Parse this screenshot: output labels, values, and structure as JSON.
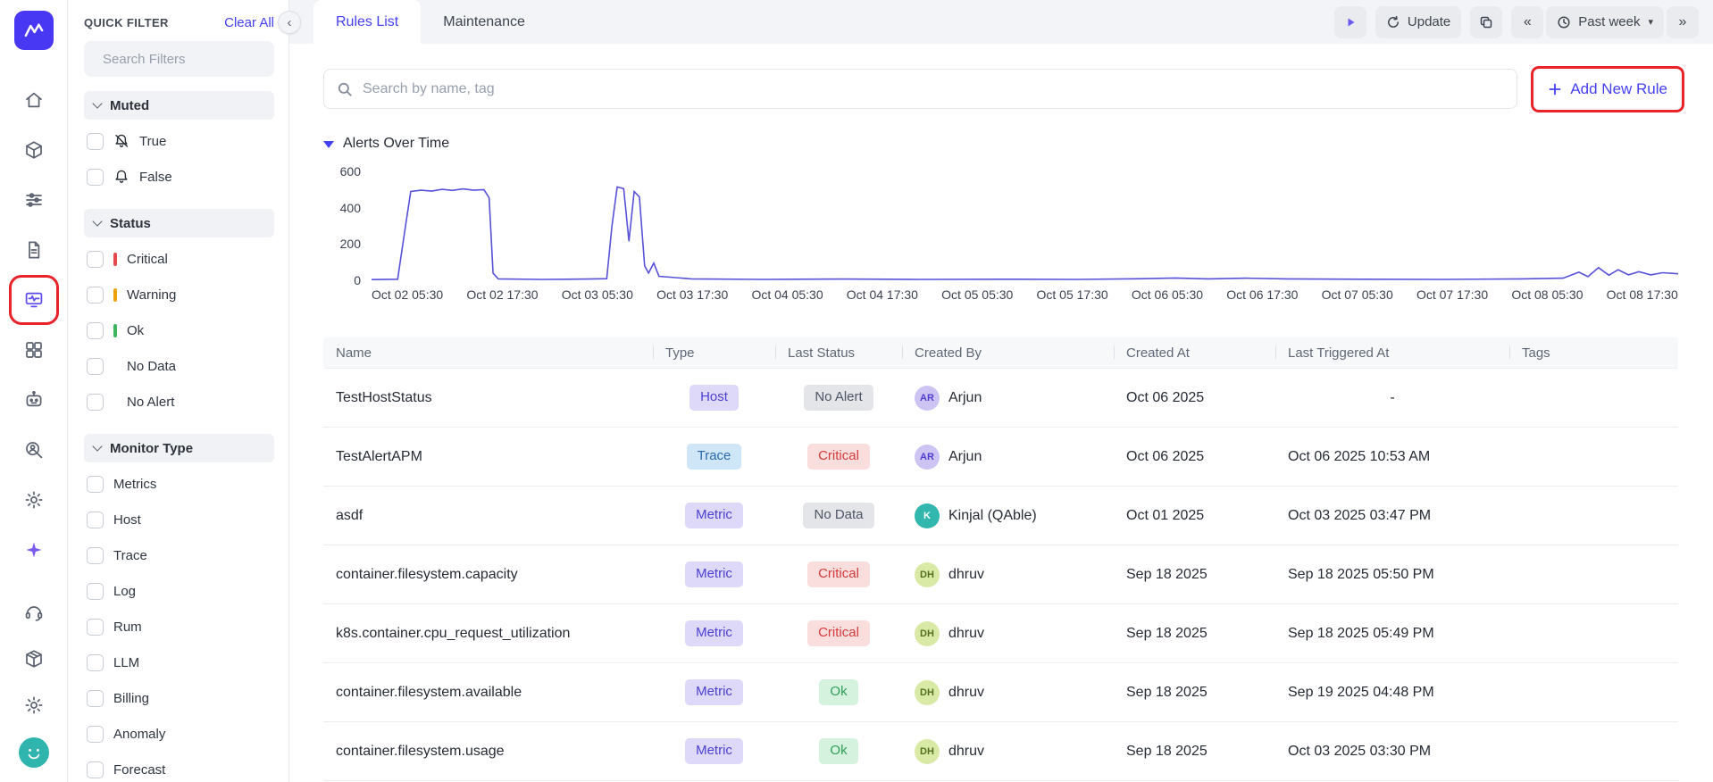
{
  "colors": {
    "accent": "#4540f2",
    "annotation": "#e8232a",
    "chart_line": "#5751d9",
    "critical": "#d53b3b",
    "warning": "#f0a20c",
    "ok": "#2f9e57"
  },
  "icons": {
    "collapse": "‹",
    "chevrons_left": "«",
    "chevrons_right": "»",
    "caret_down": "▾"
  },
  "rail": {
    "top": [
      "home-icon",
      "cube-icon",
      "sliders-icon",
      "document-icon",
      "alerts-icon",
      "grid-icon",
      "bot-icon",
      "user-search-icon",
      "gear-icon",
      "sparkle-icon"
    ],
    "bottom": [
      "headset-icon",
      "package-icon",
      "settings-icon"
    ],
    "active": "alerts-icon",
    "annotated": "alerts-icon"
  },
  "sidebar": {
    "title": "QUICK FILTER",
    "clear_all": "Clear All",
    "search_placeholder": "Search Filters",
    "sections": [
      {
        "label": "Muted",
        "items": [
          {
            "label": "True",
            "icon": "bell-muted-icon"
          },
          {
            "label": "False",
            "icon": "bell-icon"
          }
        ]
      },
      {
        "label": "Status",
        "items": [
          {
            "label": "Critical",
            "color": "#e5484d"
          },
          {
            "label": "Warning",
            "color": "#f0a20c"
          },
          {
            "label": "Ok",
            "color": "#3cb55e"
          },
          {
            "label": "No Data"
          },
          {
            "label": "No Alert"
          }
        ]
      },
      {
        "label": "Monitor Type",
        "items": [
          {
            "label": "Metrics"
          },
          {
            "label": "Host"
          },
          {
            "label": "Trace"
          },
          {
            "label": "Log"
          },
          {
            "label": "Rum"
          },
          {
            "label": "LLM"
          },
          {
            "label": "Billing"
          },
          {
            "label": "Anomaly"
          },
          {
            "label": "Forecast"
          }
        ]
      }
    ]
  },
  "tabs": [
    {
      "label": "Rules List",
      "active": true
    },
    {
      "label": "Maintenance",
      "active": false
    }
  ],
  "toolbar": {
    "update_label": "Update",
    "range_label": "Past week"
  },
  "search": {
    "placeholder": "Search by name, tag"
  },
  "add_rule_label": "Add New Rule",
  "chart_section_label": "Alerts Over Time",
  "chart_data": {
    "type": "line",
    "title": "Alerts Over Time",
    "legend": [],
    "grid": false,
    "ylim": [
      0,
      650
    ],
    "yticks": [
      0,
      200,
      400,
      600
    ],
    "x_labels": [
      "Oct 02 05:30",
      "Oct 02 17:30",
      "Oct 03 05:30",
      "Oct 03 17:30",
      "Oct 04 05:30",
      "Oct 04 17:30",
      "Oct 05 05:30",
      "Oct 05 17:30",
      "Oct 06 05:30",
      "Oct 06 17:30",
      "Oct 07 05:30",
      "Oct 07 17:30",
      "Oct 08 05:30",
      "Oct 08 17:30"
    ],
    "points": [
      [
        0.0,
        4
      ],
      [
        0.02,
        6
      ],
      [
        0.026,
        300
      ],
      [
        0.03,
        490
      ],
      [
        0.038,
        497
      ],
      [
        0.046,
        492
      ],
      [
        0.054,
        502
      ],
      [
        0.062,
        496
      ],
      [
        0.07,
        504
      ],
      [
        0.078,
        497
      ],
      [
        0.086,
        500
      ],
      [
        0.09,
        455
      ],
      [
        0.093,
        40
      ],
      [
        0.097,
        8
      ],
      [
        0.13,
        5
      ],
      [
        0.165,
        7
      ],
      [
        0.18,
        9
      ],
      [
        0.184,
        300
      ],
      [
        0.188,
        515
      ],
      [
        0.193,
        505
      ],
      [
        0.197,
        215
      ],
      [
        0.201,
        490
      ],
      [
        0.205,
        460
      ],
      [
        0.209,
        80
      ],
      [
        0.212,
        40
      ],
      [
        0.216,
        95
      ],
      [
        0.22,
        22
      ],
      [
        0.245,
        8
      ],
      [
        0.3,
        5
      ],
      [
        0.36,
        7
      ],
      [
        0.42,
        5
      ],
      [
        0.48,
        6
      ],
      [
        0.54,
        5
      ],
      [
        0.59,
        9
      ],
      [
        0.615,
        13
      ],
      [
        0.64,
        8
      ],
      [
        0.67,
        12
      ],
      [
        0.7,
        8
      ],
      [
        0.76,
        6
      ],
      [
        0.82,
        5
      ],
      [
        0.88,
        8
      ],
      [
        0.912,
        12
      ],
      [
        0.924,
        45
      ],
      [
        0.931,
        20
      ],
      [
        0.939,
        70
      ],
      [
        0.947,
        28
      ],
      [
        0.954,
        58
      ],
      [
        0.962,
        30
      ],
      [
        0.97,
        48
      ],
      [
        0.979,
        30
      ],
      [
        0.988,
        42
      ],
      [
        1.0,
        36
      ]
    ]
  },
  "table": {
    "columns": [
      "Name",
      "Type",
      "Last Status",
      "Created By",
      "Created At",
      "Last Triggered At",
      "Tags"
    ],
    "rows": [
      {
        "name": "TestHostStatus",
        "type": "Host",
        "status": "No Alert",
        "created_by": {
          "initials": "AR",
          "name": "Arjun",
          "color": "purple"
        },
        "created_at": "Oct 06 2025",
        "last_triggered": "-",
        "tags": ""
      },
      {
        "name": "TestAlertAPM",
        "type": "Trace",
        "status": "Critical",
        "created_by": {
          "initials": "AR",
          "name": "Arjun",
          "color": "purple"
        },
        "created_at": "Oct 06 2025",
        "last_triggered": "Oct 06 2025 10:53 AM",
        "tags": ""
      },
      {
        "name": "asdf",
        "type": "Metric",
        "status": "No Data",
        "created_by": {
          "initials": "K",
          "name": "Kinjal (QAble)",
          "color": "teal"
        },
        "created_at": "Oct 01 2025",
        "last_triggered": "Oct 03 2025 03:47 PM",
        "tags": ""
      },
      {
        "name": "container.filesystem.capacity",
        "type": "Metric",
        "status": "Critical",
        "created_by": {
          "initials": "DH",
          "name": "dhruv",
          "color": "green"
        },
        "created_at": "Sep 18 2025",
        "last_triggered": "Sep 18 2025 05:50 PM",
        "tags": ""
      },
      {
        "name": "k8s.container.cpu_request_utilization",
        "type": "Metric",
        "status": "Critical",
        "created_by": {
          "initials": "DH",
          "name": "dhruv",
          "color": "green"
        },
        "created_at": "Sep 18 2025",
        "last_triggered": "Sep 18 2025 05:49 PM",
        "tags": ""
      },
      {
        "name": "container.filesystem.available",
        "type": "Metric",
        "status": "Ok",
        "created_by": {
          "initials": "DH",
          "name": "dhruv",
          "color": "green"
        },
        "created_at": "Sep 18 2025",
        "last_triggered": "Sep 19 2025 04:48 PM",
        "tags": ""
      },
      {
        "name": "container.filesystem.usage",
        "type": "Metric",
        "status": "Ok",
        "created_by": {
          "initials": "DH",
          "name": "dhruv",
          "color": "green"
        },
        "created_at": "Sep 18 2025",
        "last_triggered": "Oct 03 2025 03:30 PM",
        "tags": ""
      }
    ]
  }
}
